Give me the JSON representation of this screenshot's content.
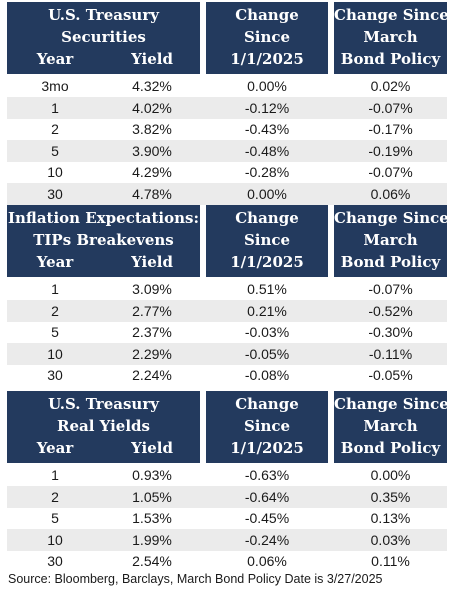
{
  "tables": [
    {
      "title_lines": [
        "U.S. Treasury",
        "Securities"
      ],
      "year_header": "Year",
      "yield_header": "Yield",
      "change1_lines": [
        "Change",
        "Since",
        "1/1/2025"
      ],
      "change2_lines": [
        "Change Since",
        "March",
        "Bond Policy"
      ],
      "rows": [
        {
          "year": "3mo",
          "yield": "4.32%",
          "chg_ytd": "0.00%",
          "chg_policy": "0.02%"
        },
        {
          "year": "1",
          "yield": "4.02%",
          "chg_ytd": "-0.12%",
          "chg_policy": "-0.07%"
        },
        {
          "year": "2",
          "yield": "3.82%",
          "chg_ytd": "-0.43%",
          "chg_policy": "-0.17%"
        },
        {
          "year": "5",
          "yield": "3.90%",
          "chg_ytd": "-0.48%",
          "chg_policy": "-0.19%"
        },
        {
          "year": "10",
          "yield": "4.29%",
          "chg_ytd": "-0.28%",
          "chg_policy": "-0.07%"
        },
        {
          "year": "30",
          "yield": "4.78%",
          "chg_ytd": "0.00%",
          "chg_policy": "0.06%"
        }
      ]
    },
    {
      "title_lines": [
        "Inflation Expectations:",
        "TIPs Breakevens"
      ],
      "year_header": "Year",
      "yield_header": "Yield",
      "change1_lines": [
        "Change",
        "Since",
        "1/1/2025"
      ],
      "change2_lines": [
        "Change Since",
        "March",
        "Bond Policy"
      ],
      "rows": [
        {
          "year": "1",
          "yield": "3.09%",
          "chg_ytd": "0.51%",
          "chg_policy": "-0.07%"
        },
        {
          "year": "2",
          "yield": "2.77%",
          "chg_ytd": "0.21%",
          "chg_policy": "-0.52%"
        },
        {
          "year": "5",
          "yield": "2.37%",
          "chg_ytd": "-0.03%",
          "chg_policy": "-0.30%"
        },
        {
          "year": "10",
          "yield": "2.29%",
          "chg_ytd": "-0.05%",
          "chg_policy": "-0.11%"
        },
        {
          "year": "30",
          "yield": "2.24%",
          "chg_ytd": "-0.08%",
          "chg_policy": "-0.05%"
        }
      ]
    },
    {
      "title_lines": [
        "U.S. Treasury",
        "Real Yields"
      ],
      "year_header": "Year",
      "yield_header": "Yield",
      "change1_lines": [
        "Change",
        "Since",
        "1/1/2025"
      ],
      "change2_lines": [
        "Change Since",
        "March",
        "Bond Policy"
      ],
      "rows": [
        {
          "year": "1",
          "yield": "0.93%",
          "chg_ytd": "-0.63%",
          "chg_policy": "0.00%"
        },
        {
          "year": "2",
          "yield": "1.05%",
          "chg_ytd": "-0.64%",
          "chg_policy": "0.35%"
        },
        {
          "year": "5",
          "yield": "1.53%",
          "chg_ytd": "-0.45%",
          "chg_policy": "0.13%"
        },
        {
          "year": "10",
          "yield": "1.99%",
          "chg_ytd": "-0.24%",
          "chg_policy": "0.03%"
        },
        {
          "year": "30",
          "yield": "2.54%",
          "chg_ytd": "0.06%",
          "chg_policy": "0.11%"
        }
      ]
    }
  ],
  "source_note": "Source: Bloomberg, Barclays, March Bond Policy Date is 3/27/2025",
  "colors": {
    "header_bg": "#233a5e",
    "header_text": "#ffffff",
    "row_shade": "#ebebeb"
  }
}
